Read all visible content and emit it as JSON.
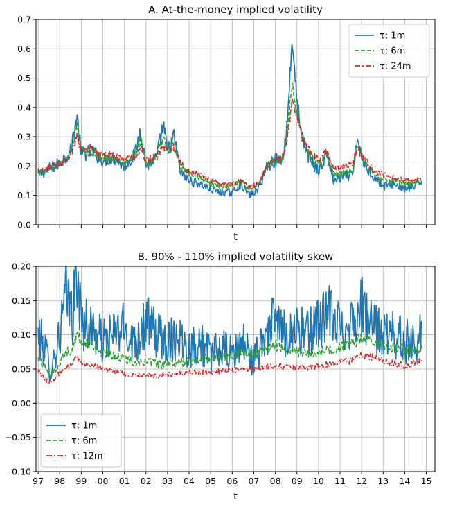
{
  "chart_data": [
    {
      "type": "line",
      "title": "A. At-the-money implied volatility",
      "xlabel": "t",
      "ylabel": "",
      "ylim": [
        0.0,
        0.7
      ],
      "yticks": [
        "0.0",
        "0.1",
        "0.2",
        "0.3",
        "0.4",
        "0.5",
        "0.6",
        "0.7"
      ],
      "yticks_values": [
        0.0,
        0.1,
        0.2,
        0.3,
        0.4,
        0.5,
        0.6,
        0.7
      ],
      "xlim": [
        1996.9,
        2015.4
      ],
      "xticks_values": [
        1997,
        1998,
        1999,
        2000,
        2001,
        2002,
        2003,
        2004,
        2005,
        2006,
        2007,
        2008,
        2009,
        2010,
        2011,
        2012,
        2013,
        2014,
        2015
      ],
      "xtick_labels_shown": false,
      "grid": true,
      "legend_position": "top-right",
      "series": [
        {
          "name": "τ: 1m",
          "color": "#1f77b4",
          "dash": "solid",
          "x": [
            1997.0,
            1997.5,
            1998.0,
            1998.5,
            1998.8,
            1999.0,
            1999.5,
            2000.0,
            2000.5,
            2001.0,
            2001.5,
            2001.75,
            2002.0,
            2002.5,
            2002.8,
            2003.0,
            2003.3,
            2003.6,
            2004.0,
            2004.5,
            2005.0,
            2005.5,
            2006.0,
            2006.4,
            2006.8,
            2007.2,
            2007.6,
            2008.0,
            2008.3,
            2008.5,
            2008.8,
            2008.95,
            2009.2,
            2009.5,
            2010.0,
            2010.4,
            2010.7,
            2011.0,
            2011.6,
            2011.8,
            2012.0,
            2012.5,
            2013.0,
            2013.5,
            2014.0,
            2014.5,
            2014.8
          ],
          "y": [
            0.17,
            0.19,
            0.21,
            0.25,
            0.37,
            0.24,
            0.25,
            0.22,
            0.23,
            0.2,
            0.24,
            0.33,
            0.2,
            0.23,
            0.34,
            0.25,
            0.3,
            0.18,
            0.15,
            0.14,
            0.12,
            0.11,
            0.11,
            0.14,
            0.1,
            0.12,
            0.2,
            0.22,
            0.22,
            0.3,
            0.65,
            0.45,
            0.3,
            0.24,
            0.18,
            0.24,
            0.15,
            0.16,
            0.17,
            0.3,
            0.22,
            0.17,
            0.13,
            0.14,
            0.12,
            0.13,
            0.15
          ]
        },
        {
          "name": "τ: 6m",
          "color": "#2ca02c",
          "dash": "dashed",
          "x": [
            1997.0,
            1997.5,
            1998.0,
            1998.5,
            1998.8,
            1999.0,
            1999.5,
            2000.0,
            2000.5,
            2001.0,
            2001.5,
            2001.75,
            2002.0,
            2002.5,
            2002.8,
            2003.0,
            2003.3,
            2003.6,
            2004.0,
            2004.5,
            2005.0,
            2005.5,
            2006.0,
            2006.4,
            2006.8,
            2007.2,
            2007.6,
            2008.0,
            2008.3,
            2008.5,
            2008.8,
            2008.95,
            2009.2,
            2009.5,
            2010.0,
            2010.4,
            2010.7,
            2011.0,
            2011.6,
            2011.8,
            2012.0,
            2012.5,
            2013.0,
            2013.5,
            2014.0,
            2014.5,
            2014.8
          ],
          "y": [
            0.18,
            0.19,
            0.21,
            0.24,
            0.34,
            0.25,
            0.25,
            0.23,
            0.23,
            0.21,
            0.24,
            0.29,
            0.21,
            0.23,
            0.3,
            0.25,
            0.28,
            0.2,
            0.17,
            0.16,
            0.14,
            0.13,
            0.13,
            0.15,
            0.12,
            0.13,
            0.2,
            0.22,
            0.22,
            0.28,
            0.5,
            0.41,
            0.31,
            0.25,
            0.2,
            0.24,
            0.17,
            0.17,
            0.19,
            0.28,
            0.23,
            0.18,
            0.15,
            0.15,
            0.14,
            0.14,
            0.15
          ]
        },
        {
          "name": "τ: 24m",
          "color": "#d62728",
          "dash": "dashdot",
          "x": [
            1997.0,
            1997.5,
            1998.0,
            1998.5,
            1998.8,
            1999.0,
            1999.5,
            2000.0,
            2000.5,
            2001.0,
            2001.5,
            2001.75,
            2002.0,
            2002.5,
            2002.8,
            2003.0,
            2003.3,
            2003.6,
            2004.0,
            2004.5,
            2005.0,
            2005.5,
            2006.0,
            2006.4,
            2006.8,
            2007.2,
            2007.6,
            2008.0,
            2008.3,
            2008.5,
            2008.8,
            2008.95,
            2009.2,
            2009.5,
            2010.0,
            2010.4,
            2010.7,
            2011.0,
            2011.6,
            2011.8,
            2012.0,
            2012.5,
            2013.0,
            2013.5,
            2014.0,
            2014.5,
            2014.8
          ],
          "y": [
            0.18,
            0.19,
            0.21,
            0.23,
            0.3,
            0.26,
            0.26,
            0.24,
            0.24,
            0.22,
            0.23,
            0.26,
            0.22,
            0.23,
            0.27,
            0.25,
            0.26,
            0.21,
            0.18,
            0.17,
            0.15,
            0.14,
            0.14,
            0.15,
            0.13,
            0.14,
            0.2,
            0.22,
            0.23,
            0.27,
            0.43,
            0.38,
            0.31,
            0.26,
            0.22,
            0.25,
            0.19,
            0.19,
            0.21,
            0.27,
            0.24,
            0.19,
            0.17,
            0.16,
            0.15,
            0.15,
            0.16
          ]
        }
      ]
    },
    {
      "type": "line",
      "title": "B. 90% - 110% implied volatility skew",
      "xlabel": "t",
      "ylabel": "",
      "ylim": [
        -0.1,
        0.2
      ],
      "yticks": [
        "−0.10",
        "−0.05",
        "0.00",
        "0.05",
        "0.10",
        "0.15",
        "0.20"
      ],
      "yticks_values": [
        -0.1,
        -0.05,
        0.0,
        0.05,
        0.1,
        0.15,
        0.2
      ],
      "xlim": [
        1996.9,
        2015.4
      ],
      "xticks_values": [
        1997,
        1998,
        1999,
        2000,
        2001,
        2002,
        2003,
        2004,
        2005,
        2006,
        2007,
        2008,
        2009,
        2010,
        2011,
        2012,
        2013,
        2014,
        2015
      ],
      "xtick_labels": [
        "97",
        "98",
        "99",
        "00",
        "01",
        "02",
        "03",
        "04",
        "05",
        "06",
        "07",
        "08",
        "09",
        "10",
        "11",
        "12",
        "13",
        "14",
        "15"
      ],
      "grid": true,
      "legend_position": "bottom-left",
      "series": [
        {
          "name": "τ: 1m",
          "color": "#1f77b4",
          "dash": "solid",
          "x": [
            1997.0,
            1997.3,
            1997.6,
            1998.0,
            1998.3,
            1998.6,
            1998.8,
            1999.0,
            1999.5,
            2000.0,
            2000.5,
            2001.0,
            2001.5,
            2002.0,
            2002.5,
            2003.0,
            2003.5,
            2004.0,
            2004.5,
            2005.0,
            2005.5,
            2006.0,
            2006.5,
            2007.0,
            2007.5,
            2008.0,
            2008.5,
            2009.0,
            2009.5,
            2010.0,
            2010.5,
            2011.0,
            2011.5,
            2012.0,
            2012.5,
            2013.0,
            2013.5,
            2014.0,
            2014.5,
            2014.8
          ],
          "y": [
            0.1,
            0.08,
            0.05,
            0.1,
            0.16,
            0.13,
            0.19,
            0.12,
            0.11,
            0.09,
            0.1,
            0.11,
            0.09,
            0.12,
            0.1,
            0.09,
            0.1,
            0.08,
            0.09,
            0.07,
            0.08,
            0.07,
            0.09,
            0.06,
            0.1,
            0.12,
            0.1,
            0.11,
            0.1,
            0.12,
            0.13,
            0.11,
            0.12,
            0.14,
            0.11,
            0.1,
            0.1,
            0.09,
            0.09,
            0.11
          ]
        },
        {
          "name": "τ: 6m",
          "color": "#2ca02c",
          "dash": "dashed",
          "x": [
            1997.0,
            1997.3,
            1997.6,
            1998.0,
            1998.3,
            1998.6,
            1998.8,
            1999.0,
            1999.5,
            2000.0,
            2000.5,
            2001.0,
            2001.5,
            2002.0,
            2002.5,
            2003.0,
            2003.5,
            2004.0,
            2004.5,
            2005.0,
            2005.5,
            2006.0,
            2006.5,
            2007.0,
            2007.5,
            2008.0,
            2008.5,
            2009.0,
            2009.5,
            2010.0,
            2010.5,
            2011.0,
            2011.5,
            2012.0,
            2012.5,
            2013.0,
            2013.5,
            2014.0,
            2014.5,
            2014.8
          ],
          "y": [
            0.065,
            0.055,
            0.04,
            0.06,
            0.075,
            0.08,
            0.1,
            0.09,
            0.085,
            0.075,
            0.07,
            0.065,
            0.06,
            0.06,
            0.058,
            0.055,
            0.06,
            0.06,
            0.065,
            0.065,
            0.07,
            0.07,
            0.075,
            0.072,
            0.08,
            0.085,
            0.078,
            0.075,
            0.072,
            0.075,
            0.078,
            0.082,
            0.085,
            0.095,
            0.09,
            0.088,
            0.082,
            0.078,
            0.077,
            0.08
          ]
        },
        {
          "name": "τ: 12m",
          "color": "#d62728",
          "dash": "dashdot",
          "x": [
            1997.0,
            1997.3,
            1997.6,
            1998.0,
            1998.3,
            1998.6,
            1998.8,
            1999.0,
            1999.5,
            2000.0,
            2000.5,
            2001.0,
            2001.5,
            2002.0,
            2002.5,
            2003.0,
            2003.5,
            2004.0,
            2004.5,
            2005.0,
            2005.5,
            2006.0,
            2006.5,
            2007.0,
            2007.5,
            2008.0,
            2008.5,
            2009.0,
            2009.5,
            2010.0,
            2010.5,
            2011.0,
            2011.5,
            2012.0,
            2012.5,
            2013.0,
            2013.5,
            2014.0,
            2014.5,
            2014.8
          ],
          "y": [
            0.048,
            0.035,
            0.03,
            0.045,
            0.05,
            0.06,
            0.07,
            0.058,
            0.055,
            0.05,
            0.047,
            0.043,
            0.04,
            0.042,
            0.04,
            0.042,
            0.043,
            0.045,
            0.045,
            0.045,
            0.047,
            0.048,
            0.05,
            0.05,
            0.053,
            0.055,
            0.052,
            0.053,
            0.05,
            0.055,
            0.057,
            0.06,
            0.062,
            0.07,
            0.068,
            0.062,
            0.058,
            0.055,
            0.058,
            0.062
          ]
        }
      ]
    }
  ]
}
